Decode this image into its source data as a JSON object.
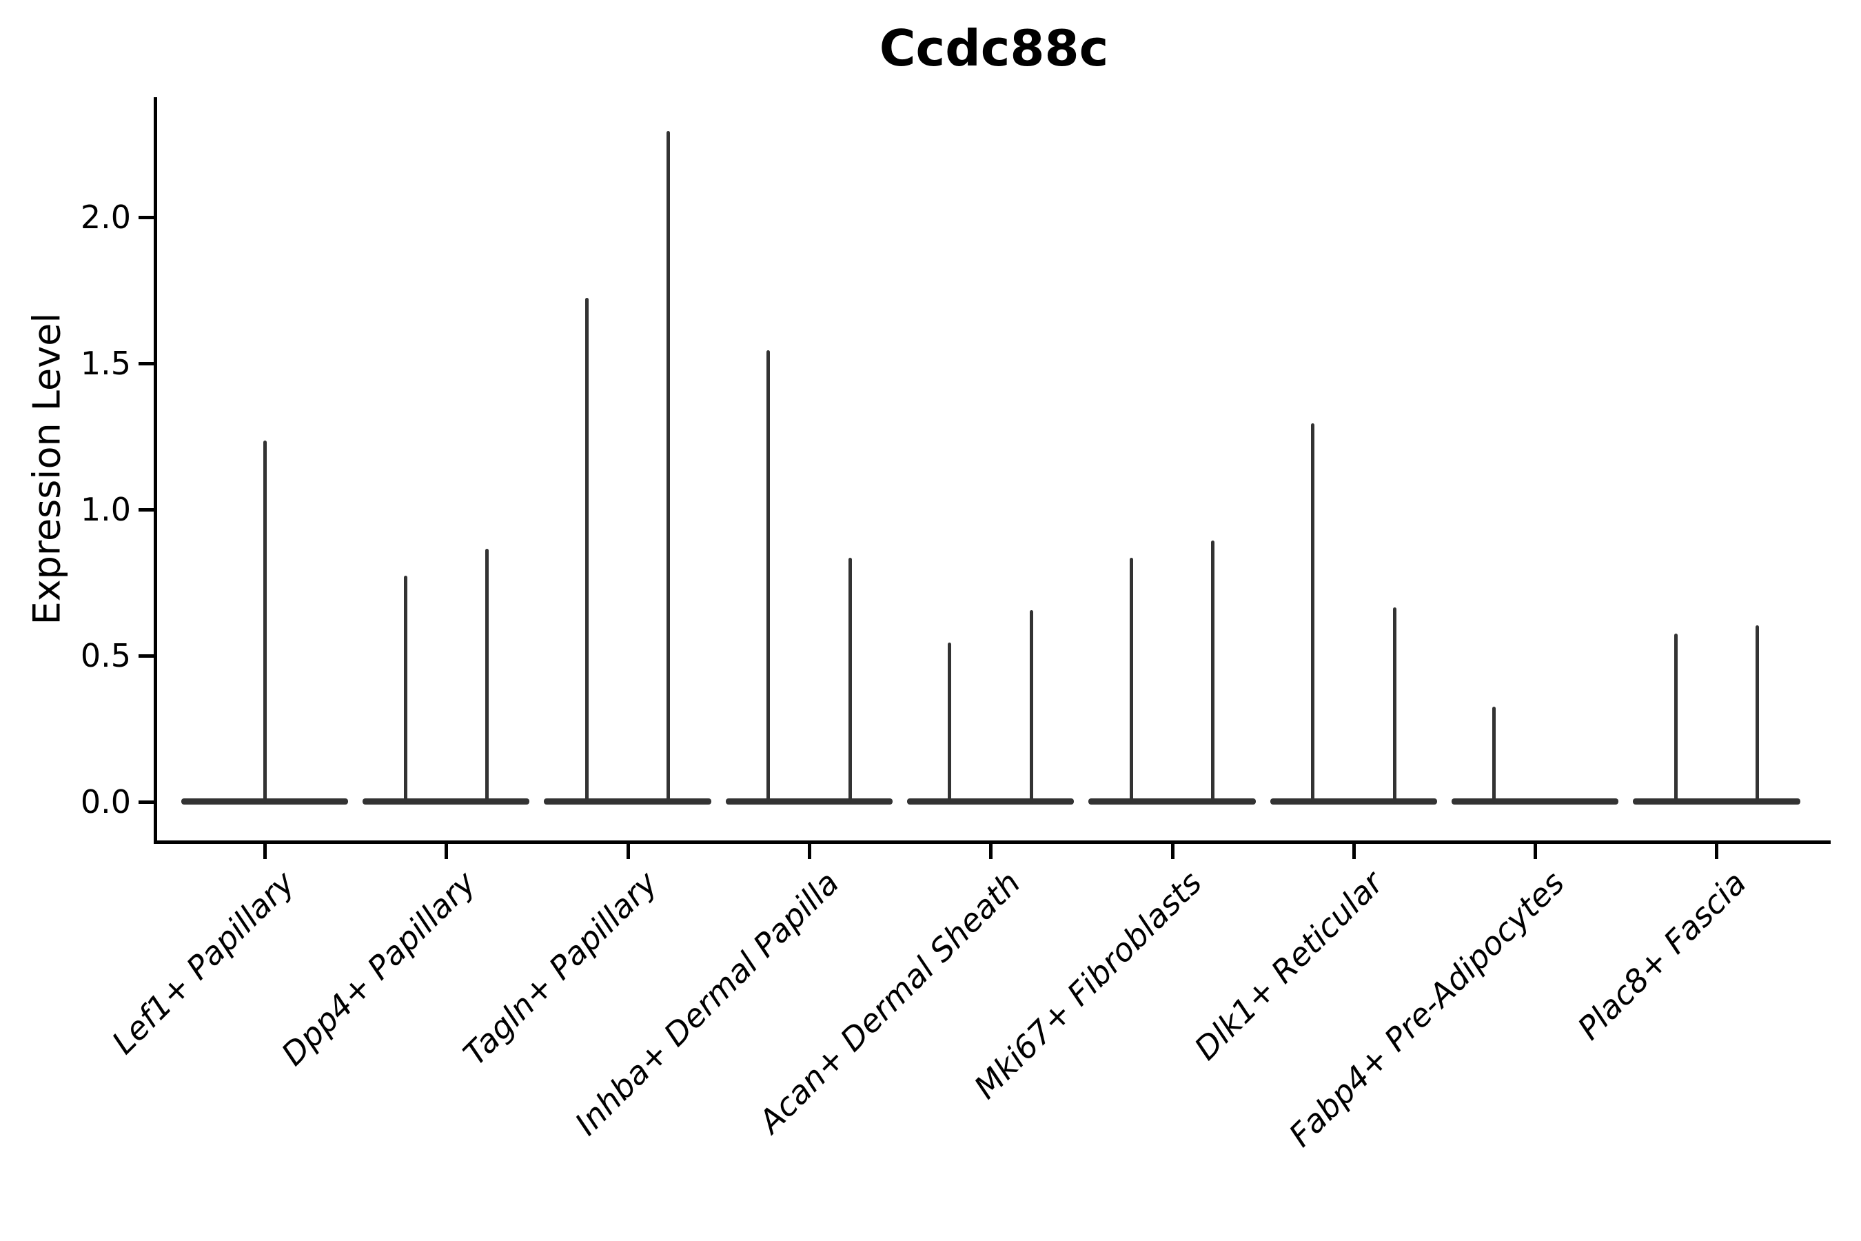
{
  "title": "Ccdc88c",
  "ylabel": "Expression Level",
  "colors": {
    "violin": "#333333",
    "axis": "#000000",
    "text": "#000000",
    "background": "#ffffff"
  },
  "chart_data": {
    "type": "violin",
    "title": "Ccdc88c",
    "xlabel": "",
    "ylabel": "Expression Level",
    "grid": false,
    "legend": "none",
    "ylim": [
      -0.13,
      2.41
    ],
    "yticks": [
      0.0,
      0.5,
      1.0,
      1.5,
      2.0
    ],
    "ytick_labels": [
      "0.0",
      "0.5",
      "1.0",
      "1.5",
      "2.0"
    ],
    "categories": [
      "Lef1+ Papillary",
      "Dpp4+ Papillary",
      "Tagln+ Papillary",
      "Inhba+ Dermal Papilla",
      "Acan+ Dermal Sheath",
      "Mki67+ Fibroblasts",
      "Dlk1+ Reticular",
      "Fabp4+ Pre-Adipocytes",
      "Plac8+ Fascia"
    ],
    "body_halfwidth_units": 0.46,
    "violins": [
      {
        "category": "Lef1+ Papillary",
        "spikes": [
          {
            "offset": 0.0,
            "max": 1.23
          }
        ]
      },
      {
        "category": "Dpp4+ Papillary",
        "spikes": [
          {
            "offset": -0.225,
            "max": 0.77
          },
          {
            "offset": 0.225,
            "max": 0.86
          }
        ]
      },
      {
        "category": "Tagln+ Papillary",
        "spikes": [
          {
            "offset": -0.225,
            "max": 1.72
          },
          {
            "offset": 0.225,
            "max": 2.29
          }
        ]
      },
      {
        "category": "Inhba+ Dermal Papilla",
        "spikes": [
          {
            "offset": -0.225,
            "max": 1.54
          },
          {
            "offset": 0.225,
            "max": 0.83
          }
        ]
      },
      {
        "category": "Acan+ Dermal Sheath",
        "spikes": [
          {
            "offset": -0.225,
            "max": 0.54
          },
          {
            "offset": 0.225,
            "max": 0.65
          }
        ]
      },
      {
        "category": "Mki67+ Fibroblasts",
        "spikes": [
          {
            "offset": -0.225,
            "max": 0.83
          },
          {
            "offset": 0.225,
            "max": 0.89
          }
        ]
      },
      {
        "category": "Dlk1+ Reticular",
        "spikes": [
          {
            "offset": -0.225,
            "max": 1.29
          },
          {
            "offset": 0.225,
            "max": 0.66
          }
        ]
      },
      {
        "category": "Fabp4+ Pre-Adipocytes",
        "spikes": [
          {
            "offset": -0.225,
            "max": 0.32
          }
        ]
      },
      {
        "category": "Plac8+ Fascia",
        "spikes": [
          {
            "offset": -0.225,
            "max": 0.57
          },
          {
            "offset": 0.225,
            "max": 0.6
          }
        ]
      }
    ]
  }
}
